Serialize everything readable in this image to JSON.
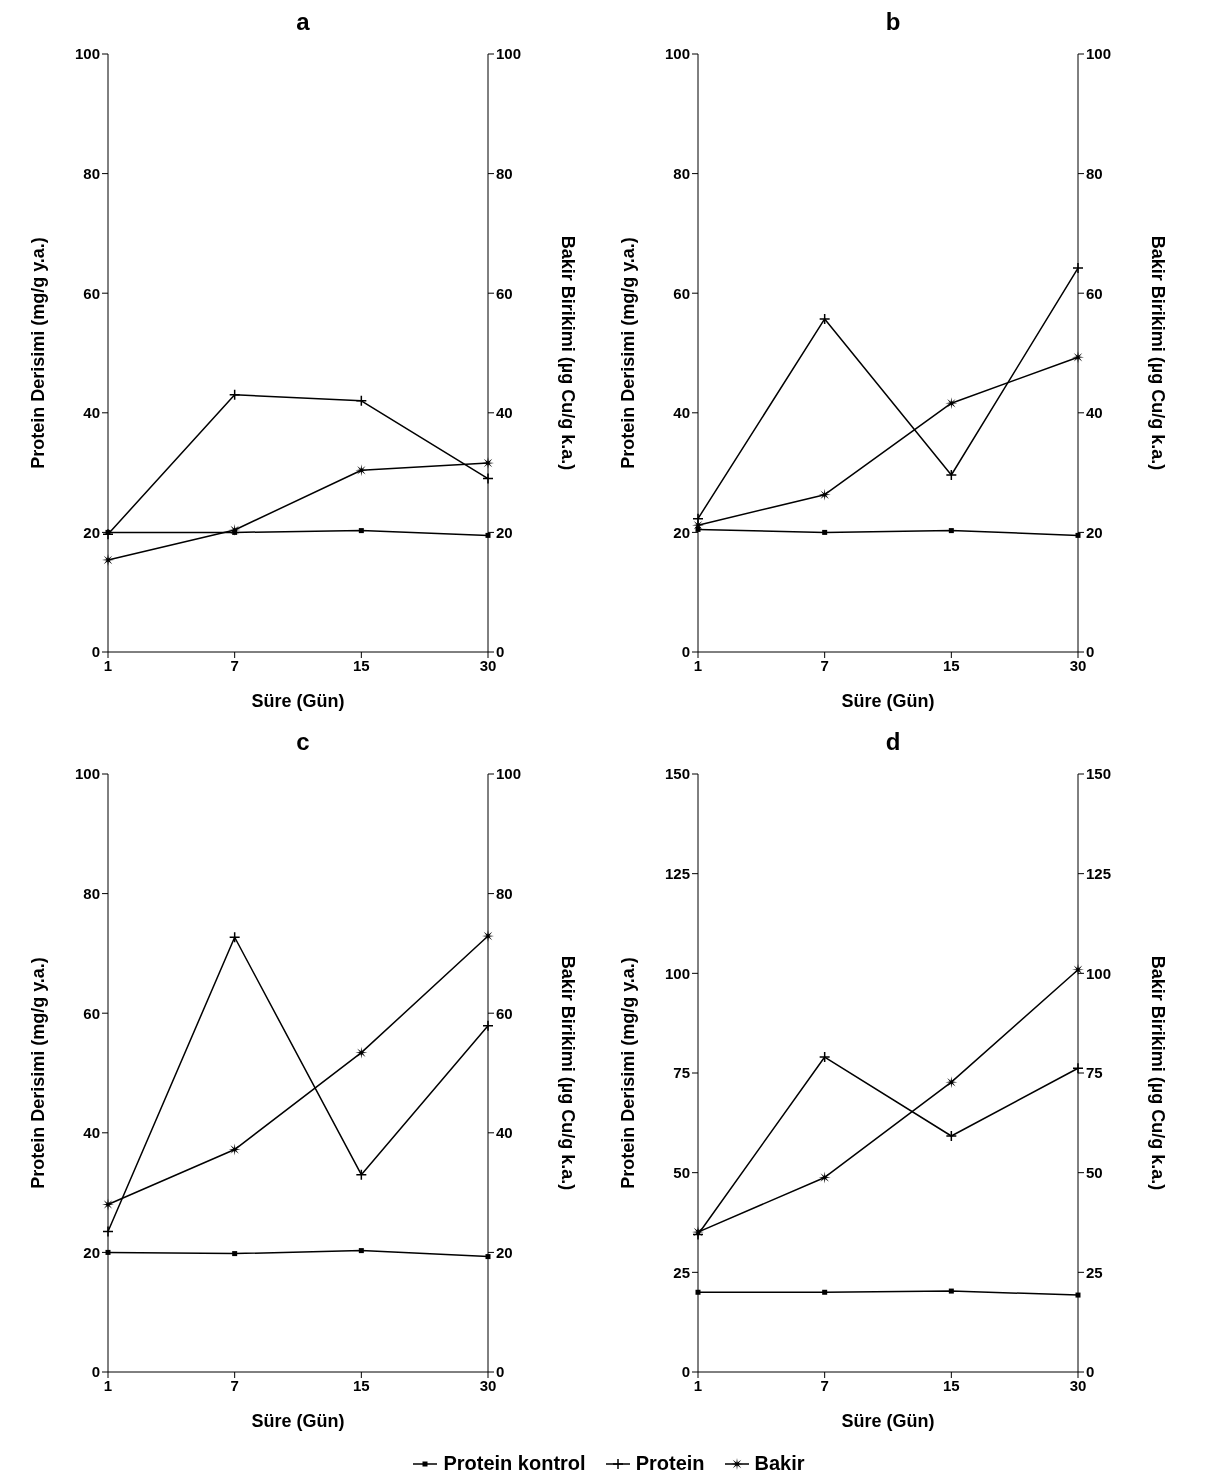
{
  "chart_data": [
    {
      "type": "line",
      "title": "a",
      "xlabel": "Süre (Gün)",
      "ylabel": "Protein Derisimi (mg/g y.a.)",
      "y2label": "Bakir Birikimi (µg Cu/g k.a.)",
      "categories": [
        "1",
        "7",
        "15",
        "30"
      ],
      "ylim": [
        0,
        100
      ],
      "yticks": [
        0,
        20,
        40,
        60,
        80,
        100
      ],
      "y2lim": [
        0,
        100
      ],
      "y2ticks": [
        0,
        20,
        40,
        60,
        80,
        100
      ],
      "line_style": "solid",
      "legend": false,
      "series": [
        {
          "color": "#000000",
          "marker": "square",
          "values": [
            20,
            20,
            20.3,
            19.5
          ]
        },
        {
          "color": "#000000",
          "marker": "cross",
          "values": [
            19.7,
            43,
            42,
            29
          ]
        },
        {
          "color": "#000000",
          "marker": "star",
          "values": [
            15.4,
            20.4,
            30.4,
            31.6
          ]
        }
      ]
    },
    {
      "type": "line",
      "title": "b",
      "xlabel": "Süre (Gün)",
      "ylabel": "Protein Derisimi (mg/g y.a.)",
      "y2label": "Bakir Birikimi (µg Cu/g k.a.)",
      "categories": [
        "1",
        "7",
        "15",
        "30"
      ],
      "ylim": [
        0,
        100
      ],
      "yticks": [
        0,
        20,
        40,
        60,
        80,
        100
      ],
      "y2lim": [
        0,
        100
      ],
      "y2ticks": [
        0,
        20,
        40,
        60,
        80,
        100
      ],
      "line_style": "solid",
      "legend": false,
      "series": [
        {
          "color": "#000000",
          "marker": "square",
          "values": [
            20.5,
            20,
            20.3,
            19.5
          ]
        },
        {
          "color": "#000000",
          "marker": "cross",
          "values": [
            22.3,
            55.7,
            29.6,
            64.2
          ]
        },
        {
          "color": "#000000",
          "marker": "star",
          "values": [
            21.2,
            26.3,
            41.6,
            49.3
          ]
        }
      ]
    },
    {
      "type": "line",
      "title": "c",
      "xlabel": "Süre (Gün)",
      "ylabel": "Protein Derisimi (mg/g y.a.)",
      "y2label": "Bakir Birikimi (µg Cu/g k.a.)",
      "categories": [
        "1",
        "7",
        "15",
        "30"
      ],
      "ylim": [
        0,
        100
      ],
      "yticks": [
        0,
        20,
        40,
        60,
        80,
        100
      ],
      "y2lim": [
        0,
        100
      ],
      "y2ticks": [
        0,
        20,
        40,
        60,
        80,
        100
      ],
      "line_style": "solid",
      "legend": false,
      "series": [
        {
          "color": "#000000",
          "marker": "square",
          "values": [
            20,
            19.8,
            20.3,
            19.3
          ]
        },
        {
          "color": "#000000",
          "marker": "cross",
          "values": [
            23.5,
            72.7,
            33,
            57.9
          ]
        },
        {
          "color": "#000000",
          "marker": "star",
          "values": [
            28,
            37.2,
            53.4,
            72.9
          ]
        }
      ]
    },
    {
      "type": "line",
      "title": "d",
      "xlabel": "Süre (Gün)",
      "ylabel": "Protein Derisimi (mg/g y.a.)",
      "y2label": "Bakir Birikimi (µg Cu/g k.a.)",
      "categories": [
        "1",
        "7",
        "15",
        "30"
      ],
      "ylim": [
        0,
        150
      ],
      "yticks": [
        0,
        25,
        50,
        75,
        100,
        125,
        150
      ],
      "y2lim": [
        0,
        150
      ],
      "y2ticks": [
        0,
        25,
        50,
        75,
        100,
        125,
        150
      ],
      "line_style": "solid",
      "legend": "bottom",
      "series": [
        {
          "name": "Protein kontrol",
          "color": "#000000",
          "marker": "square",
          "values": [
            20,
            20,
            20.3,
            19.3
          ]
        },
        {
          "name": "Protein",
          "color": "#000000",
          "marker": "cross",
          "values": [
            34.5,
            79,
            59.2,
            76.2
          ]
        },
        {
          "name": "Bakir",
          "color": "#000000",
          "marker": "star",
          "values": [
            35.1,
            48.8,
            72.7,
            100.9
          ]
        }
      ]
    }
  ]
}
